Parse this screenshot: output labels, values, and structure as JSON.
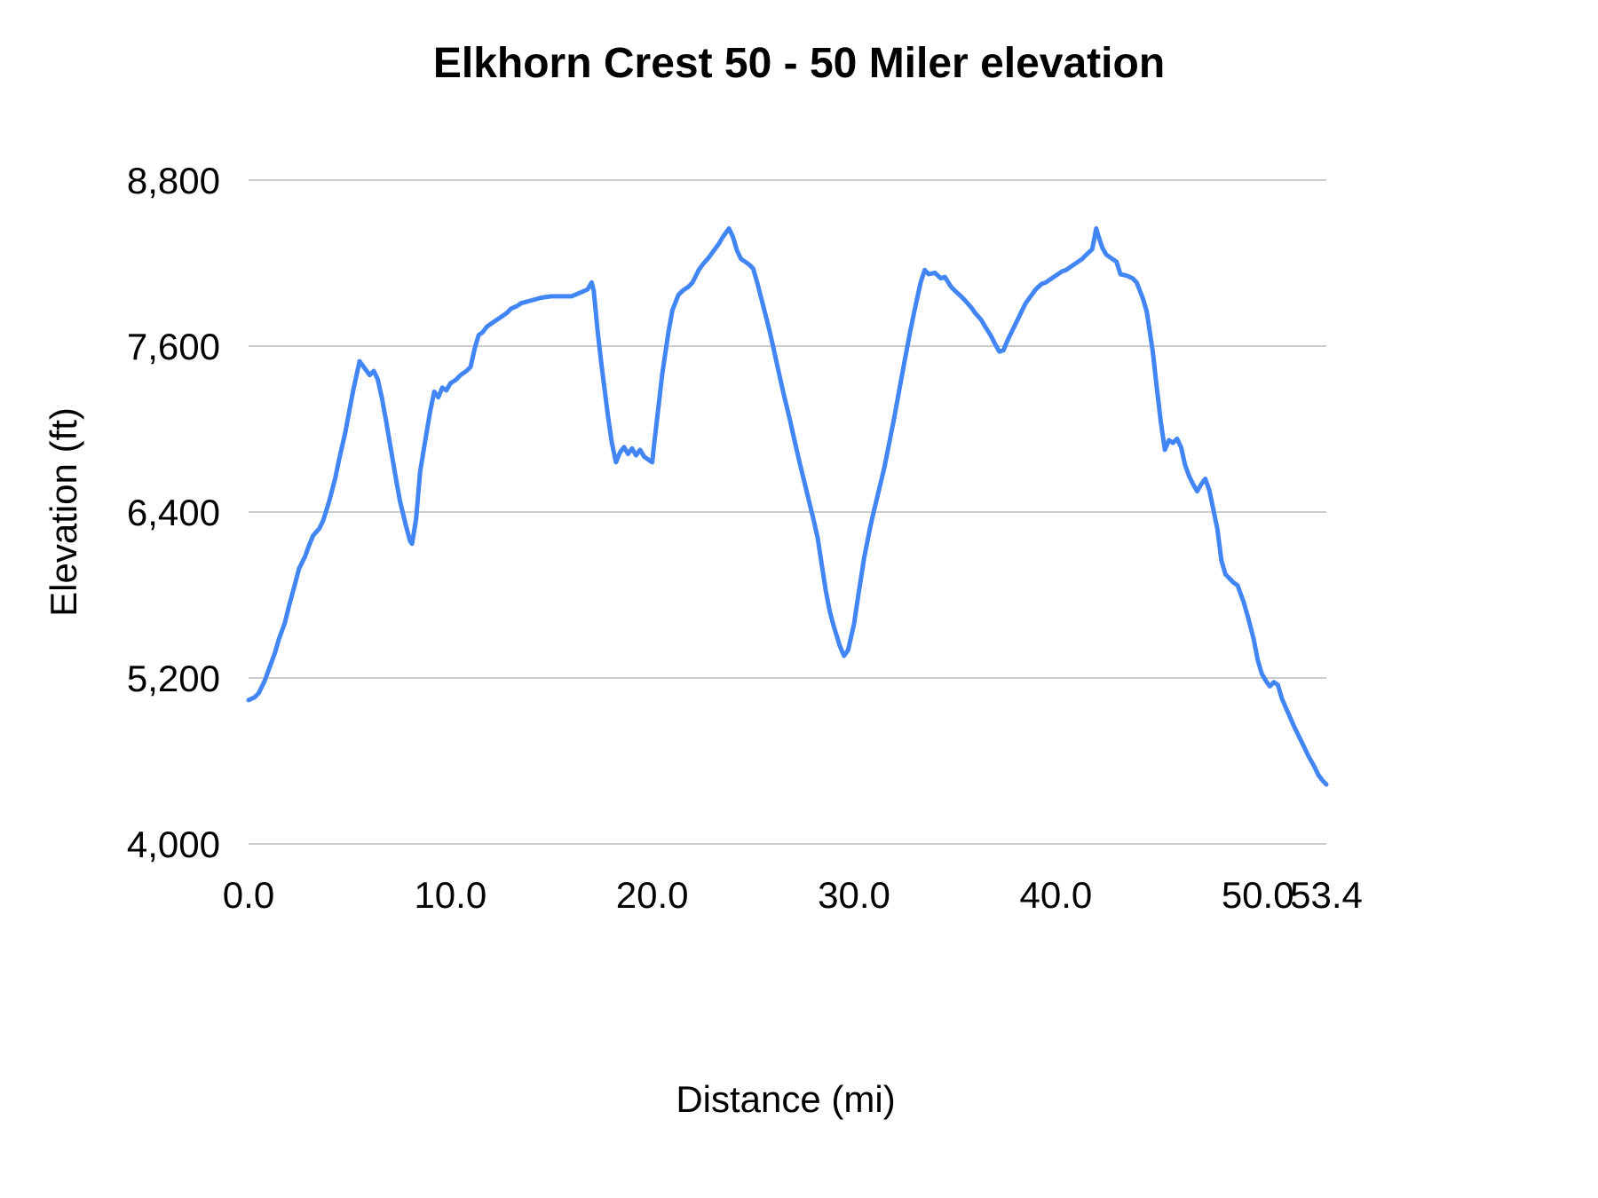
{
  "page": {
    "background_color": "#ffffff"
  },
  "chart_data": {
    "type": "line",
    "title": "Elkhorn Crest 50 - 50 Miler elevation",
    "xlabel": "Distance (mi)",
    "ylabel": "Elevation (ft)",
    "xlim": [
      0,
      53.4
    ],
    "ylim": [
      4000,
      8800
    ],
    "grid": "horizontal-only",
    "legend": "none",
    "line_color": "#4285f4",
    "line_width": 5,
    "gridline_color": "#cccccc",
    "xticks": [
      {
        "value": 0,
        "label": "0.0"
      },
      {
        "value": 10,
        "label": "10.0"
      },
      {
        "value": 20,
        "label": "20.0"
      },
      {
        "value": 30,
        "label": "30.0"
      },
      {
        "value": 40,
        "label": "40.0"
      },
      {
        "value": 50,
        "label": "50.0"
      },
      {
        "value": 53.4,
        "label": "53.4"
      }
    ],
    "yticks": [
      {
        "value": 4000,
        "label": "4,000"
      },
      {
        "value": 5200,
        "label": "5,200"
      },
      {
        "value": 6400,
        "label": "6,400"
      },
      {
        "value": 7600,
        "label": "7,600"
      },
      {
        "value": 8800,
        "label": "8,800"
      }
    ],
    "series": [
      {
        "name": "elevation",
        "points": [
          [
            0,
            5040
          ],
          [
            0.3,
            5060
          ],
          [
            0.5,
            5090
          ],
          [
            0.8,
            5180
          ],
          [
            1,
            5260
          ],
          [
            1.3,
            5380
          ],
          [
            1.5,
            5480
          ],
          [
            1.8,
            5600
          ],
          [
            2,
            5720
          ],
          [
            2.3,
            5880
          ],
          [
            2.5,
            5990
          ],
          [
            2.8,
            6080
          ],
          [
            3,
            6160
          ],
          [
            3.2,
            6230
          ],
          [
            3.5,
            6280
          ],
          [
            3.7,
            6340
          ],
          [
            4,
            6480
          ],
          [
            4.3,
            6650
          ],
          [
            4.5,
            6790
          ],
          [
            4.8,
            6980
          ],
          [
            5,
            7140
          ],
          [
            5.2,
            7290
          ],
          [
            5.5,
            7490
          ],
          [
            5.7,
            7450
          ],
          [
            6,
            7390
          ],
          [
            6.2,
            7420
          ],
          [
            6.4,
            7360
          ],
          [
            6.6,
            7230
          ],
          [
            6.8,
            7070
          ],
          [
            7,
            6900
          ],
          [
            7.3,
            6640
          ],
          [
            7.5,
            6480
          ],
          [
            7.8,
            6300
          ],
          [
            8,
            6190
          ],
          [
            8.1,
            6170
          ],
          [
            8.3,
            6350
          ],
          [
            8.5,
            6690
          ],
          [
            8.8,
            6960
          ],
          [
            9,
            7130
          ],
          [
            9.2,
            7270
          ],
          [
            9.4,
            7230
          ],
          [
            9.6,
            7300
          ],
          [
            9.8,
            7280
          ],
          [
            10,
            7330
          ],
          [
            10.3,
            7360
          ],
          [
            10.5,
            7390
          ],
          [
            10.8,
            7420
          ],
          [
            11,
            7450
          ],
          [
            11.2,
            7580
          ],
          [
            11.4,
            7680
          ],
          [
            11.6,
            7700
          ],
          [
            11.8,
            7740
          ],
          [
            12,
            7760
          ],
          [
            12.3,
            7790
          ],
          [
            12.5,
            7810
          ],
          [
            12.8,
            7840
          ],
          [
            13,
            7870
          ],
          [
            13.3,
            7890
          ],
          [
            13.5,
            7910
          ],
          [
            14,
            7930
          ],
          [
            14.5,
            7950
          ],
          [
            15,
            7960
          ],
          [
            15.5,
            7960
          ],
          [
            16,
            7960
          ],
          [
            16.5,
            7990
          ],
          [
            16.8,
            8010
          ],
          [
            17,
            8060
          ],
          [
            17.1,
            8000
          ],
          [
            17.3,
            7700
          ],
          [
            17.5,
            7450
          ],
          [
            17.8,
            7100
          ],
          [
            18,
            6900
          ],
          [
            18.2,
            6760
          ],
          [
            18.4,
            6830
          ],
          [
            18.6,
            6870
          ],
          [
            18.8,
            6820
          ],
          [
            19,
            6860
          ],
          [
            19.2,
            6810
          ],
          [
            19.4,
            6850
          ],
          [
            19.6,
            6800
          ],
          [
            19.8,
            6780
          ],
          [
            20,
            6760
          ],
          [
            20.1,
            6900
          ],
          [
            20.3,
            7150
          ],
          [
            20.5,
            7400
          ],
          [
            20.8,
            7700
          ],
          [
            21,
            7860
          ],
          [
            21.3,
            7970
          ],
          [
            21.5,
            8000
          ],
          [
            21.8,
            8030
          ],
          [
            22,
            8060
          ],
          [
            22.3,
            8150
          ],
          [
            22.5,
            8190
          ],
          [
            22.8,
            8240
          ],
          [
            23,
            8280
          ],
          [
            23.3,
            8340
          ],
          [
            23.5,
            8390
          ],
          [
            23.8,
            8450
          ],
          [
            24,
            8390
          ],
          [
            24.2,
            8290
          ],
          [
            24.4,
            8230
          ],
          [
            24.6,
            8210
          ],
          [
            24.8,
            8190
          ],
          [
            25,
            8160
          ],
          [
            25.2,
            8060
          ],
          [
            25.5,
            7890
          ],
          [
            25.8,
            7720
          ],
          [
            26,
            7590
          ],
          [
            26.3,
            7390
          ],
          [
            26.5,
            7260
          ],
          [
            26.8,
            7080
          ],
          [
            27,
            6950
          ],
          [
            27.3,
            6760
          ],
          [
            27.5,
            6640
          ],
          [
            27.8,
            6460
          ],
          [
            28,
            6340
          ],
          [
            28.2,
            6210
          ],
          [
            28.4,
            6020
          ],
          [
            28.6,
            5830
          ],
          [
            28.8,
            5680
          ],
          [
            29,
            5570
          ],
          [
            29.3,
            5430
          ],
          [
            29.5,
            5360
          ],
          [
            29.7,
            5400
          ],
          [
            30,
            5590
          ],
          [
            30.2,
            5790
          ],
          [
            30.5,
            6070
          ],
          [
            30.8,
            6290
          ],
          [
            31,
            6420
          ],
          [
            31.3,
            6600
          ],
          [
            31.5,
            6720
          ],
          [
            31.8,
            6940
          ],
          [
            32,
            7090
          ],
          [
            32.3,
            7330
          ],
          [
            32.5,
            7490
          ],
          [
            32.8,
            7720
          ],
          [
            33,
            7860
          ],
          [
            33.3,
            8060
          ],
          [
            33.5,
            8150
          ],
          [
            33.7,
            8120
          ],
          [
            34,
            8130
          ],
          [
            34.3,
            8090
          ],
          [
            34.5,
            8100
          ],
          [
            34.8,
            8030
          ],
          [
            35,
            8000
          ],
          [
            35.3,
            7960
          ],
          [
            35.5,
            7930
          ],
          [
            35.8,
            7880
          ],
          [
            36,
            7840
          ],
          [
            36.3,
            7790
          ],
          [
            36.5,
            7740
          ],
          [
            36.8,
            7670
          ],
          [
            37,
            7610
          ],
          [
            37.2,
            7560
          ],
          [
            37.4,
            7570
          ],
          [
            37.6,
            7640
          ],
          [
            37.8,
            7700
          ],
          [
            38,
            7760
          ],
          [
            38.3,
            7850
          ],
          [
            38.5,
            7910
          ],
          [
            38.8,
            7970
          ],
          [
            39,
            8010
          ],
          [
            39.3,
            8050
          ],
          [
            39.5,
            8060
          ],
          [
            39.8,
            8090
          ],
          [
            40,
            8110
          ],
          [
            40.3,
            8140
          ],
          [
            40.5,
            8150
          ],
          [
            40.8,
            8180
          ],
          [
            41,
            8200
          ],
          [
            41.3,
            8230
          ],
          [
            41.5,
            8260
          ],
          [
            41.8,
            8300
          ],
          [
            42,
            8450
          ],
          [
            42.1,
            8400
          ],
          [
            42.3,
            8310
          ],
          [
            42.5,
            8260
          ],
          [
            42.8,
            8230
          ],
          [
            43,
            8210
          ],
          [
            43.2,
            8120
          ],
          [
            43.5,
            8110
          ],
          [
            43.8,
            8090
          ],
          [
            44,
            8060
          ],
          [
            44.3,
            7950
          ],
          [
            44.5,
            7850
          ],
          [
            44.8,
            7560
          ],
          [
            45,
            7300
          ],
          [
            45.2,
            7050
          ],
          [
            45.4,
            6850
          ],
          [
            45.6,
            6920
          ],
          [
            45.8,
            6900
          ],
          [
            46,
            6930
          ],
          [
            46.2,
            6870
          ],
          [
            46.4,
            6740
          ],
          [
            46.6,
            6660
          ],
          [
            46.8,
            6600
          ],
          [
            47,
            6550
          ],
          [
            47.2,
            6600
          ],
          [
            47.4,
            6640
          ],
          [
            47.6,
            6560
          ],
          [
            47.8,
            6420
          ],
          [
            48,
            6280
          ],
          [
            48.2,
            6050
          ],
          [
            48.4,
            5950
          ],
          [
            48.6,
            5920
          ],
          [
            48.8,
            5890
          ],
          [
            49,
            5870
          ],
          [
            49.3,
            5750
          ],
          [
            49.5,
            5650
          ],
          [
            49.8,
            5480
          ],
          [
            50,
            5330
          ],
          [
            50.2,
            5230
          ],
          [
            50.4,
            5180
          ],
          [
            50.6,
            5140
          ],
          [
            50.8,
            5170
          ],
          [
            51,
            5150
          ],
          [
            51.2,
            5050
          ],
          [
            51.5,
            4950
          ],
          [
            51.8,
            4850
          ],
          [
            52,
            4790
          ],
          [
            52.3,
            4700
          ],
          [
            52.5,
            4640
          ],
          [
            52.8,
            4560
          ],
          [
            53,
            4500
          ],
          [
            53.2,
            4460
          ],
          [
            53.4,
            4430
          ]
        ]
      }
    ]
  }
}
